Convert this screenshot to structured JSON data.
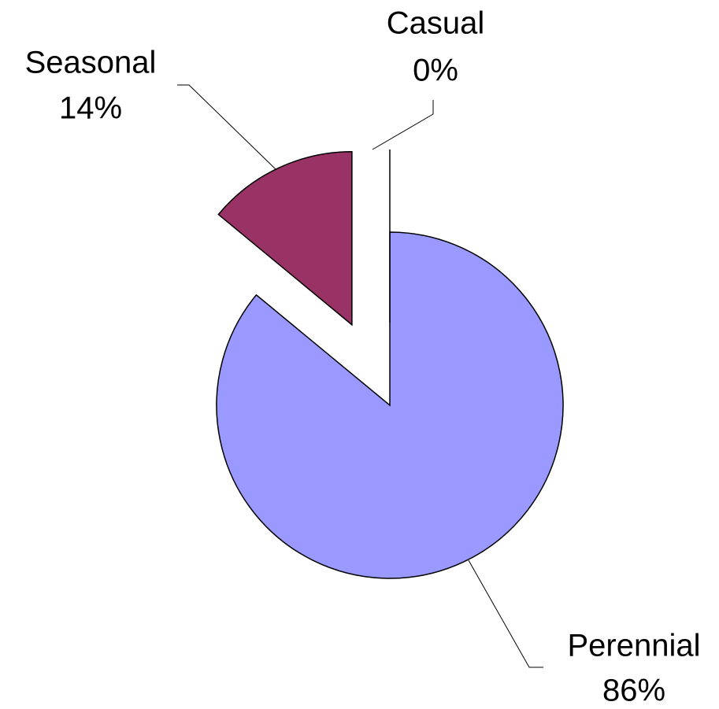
{
  "chart_data": {
    "type": "pie",
    "categories": [
      "Perennial",
      "Seasonal",
      "Casual"
    ],
    "values": [
      86,
      14,
      0
    ],
    "value_labels": [
      "86%",
      "14%",
      "0%"
    ],
    "colors": [
      "#9999ff",
      "#993366",
      "#ffffcc"
    ]
  }
}
